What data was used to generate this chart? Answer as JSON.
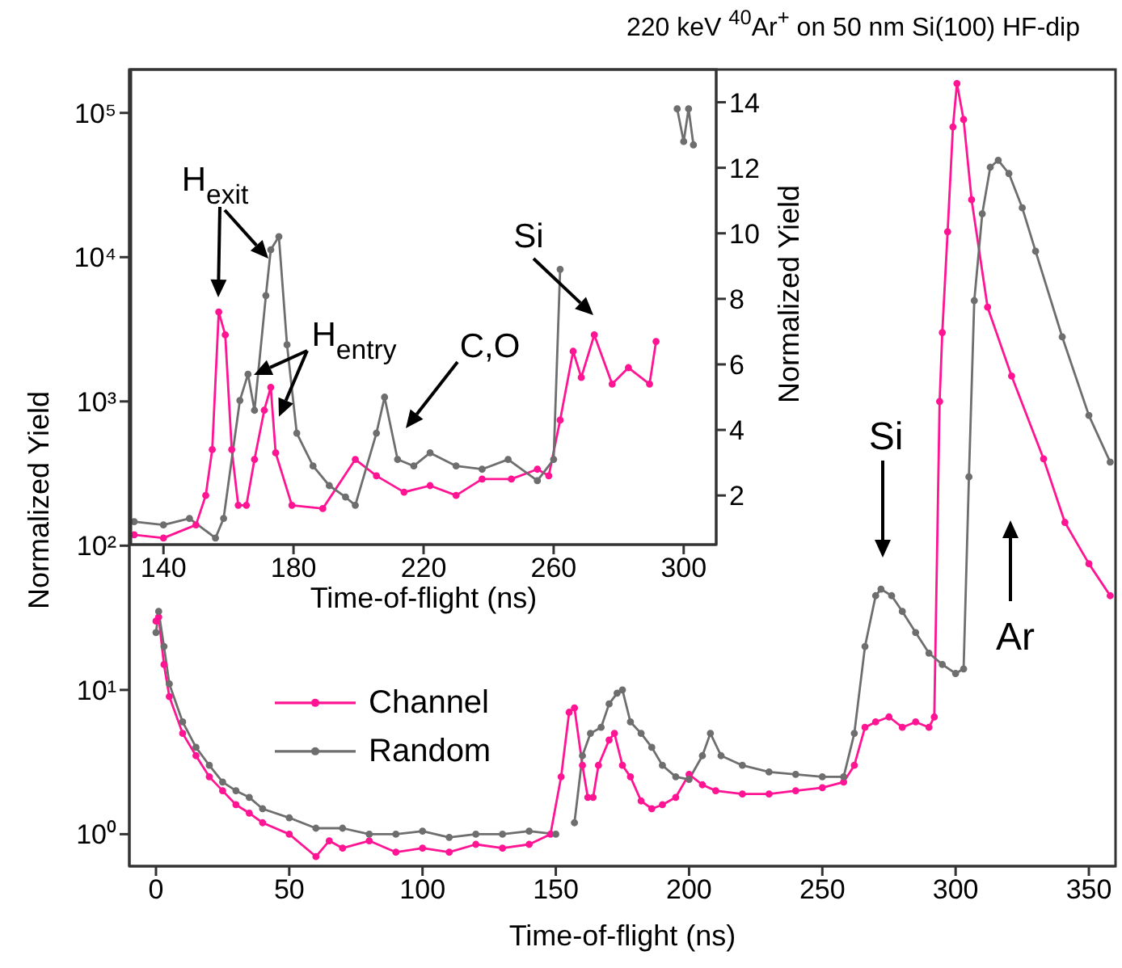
{
  "chart_data": [
    {
      "type": "line",
      "title": "220 keV $^{40}$Ar$^{+}$ on 50 nm Si(100) HF-dip",
      "xlabel": "Time-of-flight (ns)",
      "ylabel": "Normalized Yield",
      "log": "y",
      "xlim": [
        -10,
        360
      ],
      "xticks": [
        0,
        50,
        100,
        150,
        200,
        250,
        300,
        350
      ],
      "ylim": [
        0.6,
        200000
      ],
      "yticks": [
        {
          "value": 1,
          "label": "10⁰"
        },
        {
          "value": 10,
          "label": "10¹"
        },
        {
          "value": 100,
          "label": "10²"
        },
        {
          "value": 1000,
          "label": "10³"
        },
        {
          "value": 10000,
          "label": "10⁴"
        },
        {
          "value": 100000,
          "label": "10⁵"
        }
      ],
      "legend": "bottom left",
      "marker": "circle",
      "line_style": "solid",
      "annotations": [
        "Si",
        "Ar"
      ],
      "series": [
        {
          "name": "Channel",
          "color": "#ff1493",
          "x": [
            0,
            1,
            3,
            5,
            10,
            15,
            20,
            25,
            30,
            35,
            40,
            50,
            60,
            65,
            70,
            80,
            90,
            100,
            110,
            120,
            130,
            140,
            148,
            152,
            155,
            157,
            160,
            162,
            164,
            166,
            170,
            172,
            175,
            178,
            182,
            186,
            190,
            195,
            200,
            205,
            210,
            220,
            230,
            240,
            250,
            258,
            262,
            266,
            270,
            275,
            280,
            285,
            290,
            292,
            294,
            295,
            297,
            299,
            300.5,
            303,
            306,
            312,
            321,
            333,
            341,
            350,
            358
          ],
          "values": [
            30,
            32,
            15,
            9,
            5,
            3.5,
            2.5,
            2,
            1.6,
            1.4,
            1.2,
            1,
            0.7,
            0.9,
            0.8,
            0.9,
            0.75,
            0.8,
            0.75,
            0.85,
            0.8,
            0.85,
            1,
            2.5,
            7,
            7.5,
            3,
            1.8,
            1.8,
            3,
            4.5,
            5,
            3,
            2.5,
            1.7,
            1.5,
            1.6,
            1.8,
            2.6,
            2.2,
            2,
            1.9,
            1.9,
            2,
            2.1,
            2.3,
            3,
            5.5,
            6,
            6.5,
            5.5,
            6,
            5.5,
            6.5,
            1000,
            3000,
            15000,
            80000,
            160000,
            90000,
            25000,
            4500,
            1500,
            400,
            145,
            75,
            45
          ]
        },
        {
          "name": "Random",
          "color": "#6e6e6e",
          "x": [
            0,
            1,
            3,
            5,
            10,
            15,
            20,
            25,
            30,
            35,
            40,
            50,
            60,
            70,
            80,
            90,
            100,
            110,
            120,
            130,
            140,
            150,
            155,
            157,
            160,
            163,
            167,
            170,
            173,
            175,
            178,
            182,
            186,
            190,
            195,
            200,
            205,
            208,
            212,
            220,
            230,
            240,
            250,
            258,
            262,
            266,
            270,
            272,
            276,
            280,
            285,
            290,
            295,
            300,
            303,
            305,
            307,
            310,
            313,
            316,
            320,
            325,
            330,
            340,
            350,
            358
          ],
          "values": [
            25,
            35,
            20,
            11,
            6,
            4,
            3,
            2.3,
            2,
            1.8,
            1.5,
            1.3,
            1.1,
            1.1,
            1,
            1,
            1.05,
            0.95,
            1,
            1,
            1.05,
            1,
            null,
            1.2,
            3.5,
            5,
            5.5,
            8,
            9.5,
            10,
            6,
            5,
            4,
            3,
            2.5,
            2.4,
            3.5,
            5,
            3.5,
            3,
            2.7,
            2.6,
            2.5,
            2.5,
            5,
            20,
            45,
            50,
            45,
            35,
            25,
            18,
            15,
            13,
            14,
            300,
            5000,
            20000,
            42000,
            47000,
            38000,
            22000,
            11000,
            2800,
            800,
            380
          ]
        }
      ]
    },
    {
      "type": "line",
      "xlabel": "Time-of-flight (ns)",
      "ylabel": "Normalized Yield",
      "xlim": [
        130,
        310
      ],
      "xticks": [
        140,
        180,
        220,
        260,
        300
      ],
      "ylim": [
        0.5,
        15
      ],
      "yticks": [
        2,
        4,
        6,
        8,
        10,
        12,
        14
      ],
      "marker": "circle",
      "line_style": "solid",
      "annotations": [
        "H$_{exit}$",
        {
          "text": "H$_{entry}$",
          "x": 175.5,
          "y": 4.4
        },
        "C,O",
        "Si"
      ],
      "series": [
        {
          "color": "#ff1493",
          "x": [
            131,
            140,
            150,
            153,
            155,
            157,
            159,
            161,
            163,
            165.5,
            168,
            171,
            173,
            174.5,
            179.5,
            189,
            199,
            205.5,
            214,
            222,
            230,
            238,
            247,
            255,
            258.5,
            262,
            266,
            268.5,
            272.5,
            278,
            283,
            289.5,
            291.5
          ],
          "values": [
            0.8,
            0.7,
            1.1,
            2,
            3.4,
            7.6,
            6.9,
            3.4,
            1.7,
            1.7,
            3.1,
            4.6,
            5.3,
            3.3,
            1.7,
            1.6,
            3.1,
            2.6,
            2.1,
            2.3,
            2,
            2.5,
            2.5,
            2.8,
            2.6,
            4.3,
            6.4,
            5.6,
            6.9,
            5.4,
            5.9,
            5.4,
            6.7
          ]
        },
        {
          "color": "#6e6e6e",
          "x": [
            131,
            140,
            148,
            156,
            158.5,
            163.5,
            166,
            168,
            171.5,
            173,
            175.5,
            178,
            181,
            186,
            191,
            196,
            199,
            205.5,
            208,
            212,
            217,
            222,
            230,
            238,
            246,
            255,
            260,
            262,
            265,
            280,
            296,
            298,
            300,
            301.5,
            303
          ],
          "values": [
            1.2,
            1.1,
            1.3,
            0.7,
            1.3,
            4.9,
            5.7,
            4.6,
            8.1,
            9.5,
            9.9,
            6.6,
            3.9,
            2.9,
            2.3,
            1.95,
            1.7,
            3.9,
            5,
            3.1,
            2.9,
            3.3,
            2.9,
            2.8,
            3.1,
            2.45,
            3.1,
            8.9,
            null,
            null,
            null,
            13.8,
            12.8,
            13.8,
            12.7
          ]
        }
      ]
    }
  ]
}
